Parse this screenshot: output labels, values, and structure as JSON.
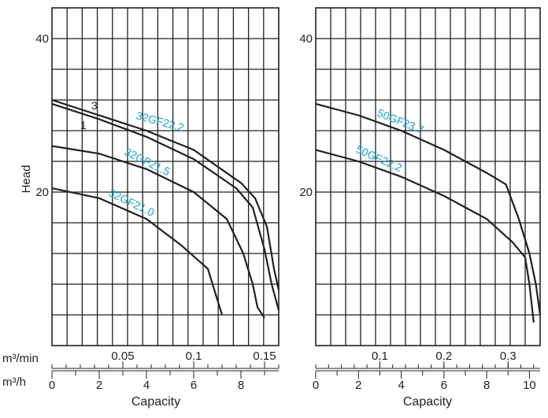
{
  "chart_data": [
    {
      "type": "line",
      "title": "",
      "ylabel": "Head",
      "xlabel": "Capacity",
      "xlabel_units_primary": "m³/min",
      "xlabel_units_secondary": "m³/h",
      "x_units": "m³/h",
      "xlim": [
        0,
        9.6
      ],
      "ylim": [
        0,
        44
      ],
      "yticks": [
        {
          "value": 20,
          "label": "20"
        },
        {
          "value": 40,
          "label": "40"
        }
      ],
      "xticks_primary": [
        {
          "value": 3,
          "label": "0.05"
        },
        {
          "value": 6,
          "label": "0.1"
        },
        {
          "value": 9,
          "label": "0.15"
        }
      ],
      "xticks_secondary": [
        {
          "value": 0,
          "label": "0"
        },
        {
          "value": 2,
          "label": "2"
        },
        {
          "value": 4,
          "label": "4"
        },
        {
          "value": 6,
          "label": "6"
        },
        {
          "value": 8,
          "label": "8"
        }
      ],
      "grid": true,
      "series": [
        {
          "name": "32GF22.2",
          "marker": "3",
          "x": [
            0,
            2,
            4,
            6,
            8,
            8.6,
            9.1,
            9.4,
            9.6
          ],
          "y": [
            32,
            30,
            28,
            25.5,
            21.2,
            19.2,
            15.5,
            10,
            7.2
          ]
        },
        {
          "name": "",
          "marker": "1",
          "x": [
            0,
            2,
            4,
            6,
            7.8,
            8.5,
            9.0,
            9.3,
            9.6
          ],
          "y": [
            31.5,
            29.5,
            27.2,
            24.3,
            20.5,
            18,
            12.5,
            8,
            4.6
          ]
        },
        {
          "name": "32GF21.5",
          "x": [
            0,
            2,
            4,
            6,
            7.4,
            8.1,
            8.5,
            8.7,
            9.0
          ],
          "y": [
            26,
            25,
            23,
            20,
            16.5,
            12,
            8,
            5,
            3.6
          ]
        },
        {
          "name": "32GF21.0",
          "x": [
            0,
            2,
            4,
            5.5,
            6.6,
            6.9,
            7.2
          ],
          "y": [
            20.5,
            19.2,
            16.5,
            13,
            10,
            7,
            4
          ]
        }
      ]
    },
    {
      "type": "line",
      "title": "",
      "ylabel": "",
      "xlabel": "Capacity",
      "xlabel_units_primary": "",
      "xlabel_units_secondary": "",
      "x_units": "m³/h",
      "xlim": [
        0,
        10.5
      ],
      "ylim": [
        0,
        44
      ],
      "yticks": [
        {
          "value": 20,
          "label": "20"
        },
        {
          "value": 40,
          "label": "40"
        }
      ],
      "xticks_primary": [
        {
          "value": 3,
          "label": "0.1"
        },
        {
          "value": 6,
          "label": "0.2"
        },
        {
          "value": 9,
          "label": "0.3"
        }
      ],
      "xticks_secondary": [
        {
          "value": 0,
          "label": "0"
        },
        {
          "value": 2,
          "label": "2"
        },
        {
          "value": 4,
          "label": "4"
        },
        {
          "value": 6,
          "label": "6"
        },
        {
          "value": 8,
          "label": "8"
        },
        {
          "value": 10,
          "label": "10"
        }
      ],
      "grid": true,
      "series": [
        {
          "name": "50GF23.7",
          "x": [
            0,
            2,
            4,
            6,
            8,
            8.9,
            9.5,
            10.0,
            10.3,
            10.5
          ],
          "y": [
            31.5,
            30,
            28,
            25.5,
            22.5,
            21,
            16.5,
            12,
            8,
            4
          ]
        },
        {
          "name": "50GF22.2",
          "x": [
            0,
            2,
            4,
            6,
            8,
            9.2,
            9.8,
            10.0,
            10.2
          ],
          "y": [
            25.5,
            24,
            22,
            19.5,
            16.5,
            13.5,
            11.5,
            8,
            3
          ]
        }
      ]
    }
  ]
}
